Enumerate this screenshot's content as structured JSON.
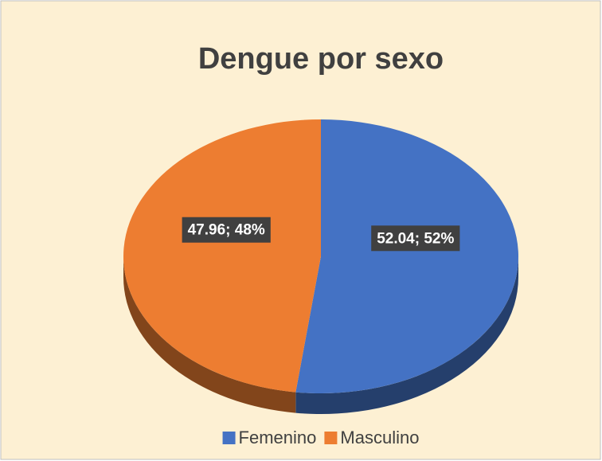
{
  "chart_data": {
    "type": "pie",
    "title": "Dengue por sexo",
    "categories": [
      "Femenino",
      "Masculino"
    ],
    "values": [
      52.04,
      47.96
    ],
    "value_labels": [
      "52.04; 52%",
      "47.96; 48%"
    ],
    "colors": [
      "#4472c4",
      "#ed7d31"
    ],
    "legend": "bottom"
  }
}
